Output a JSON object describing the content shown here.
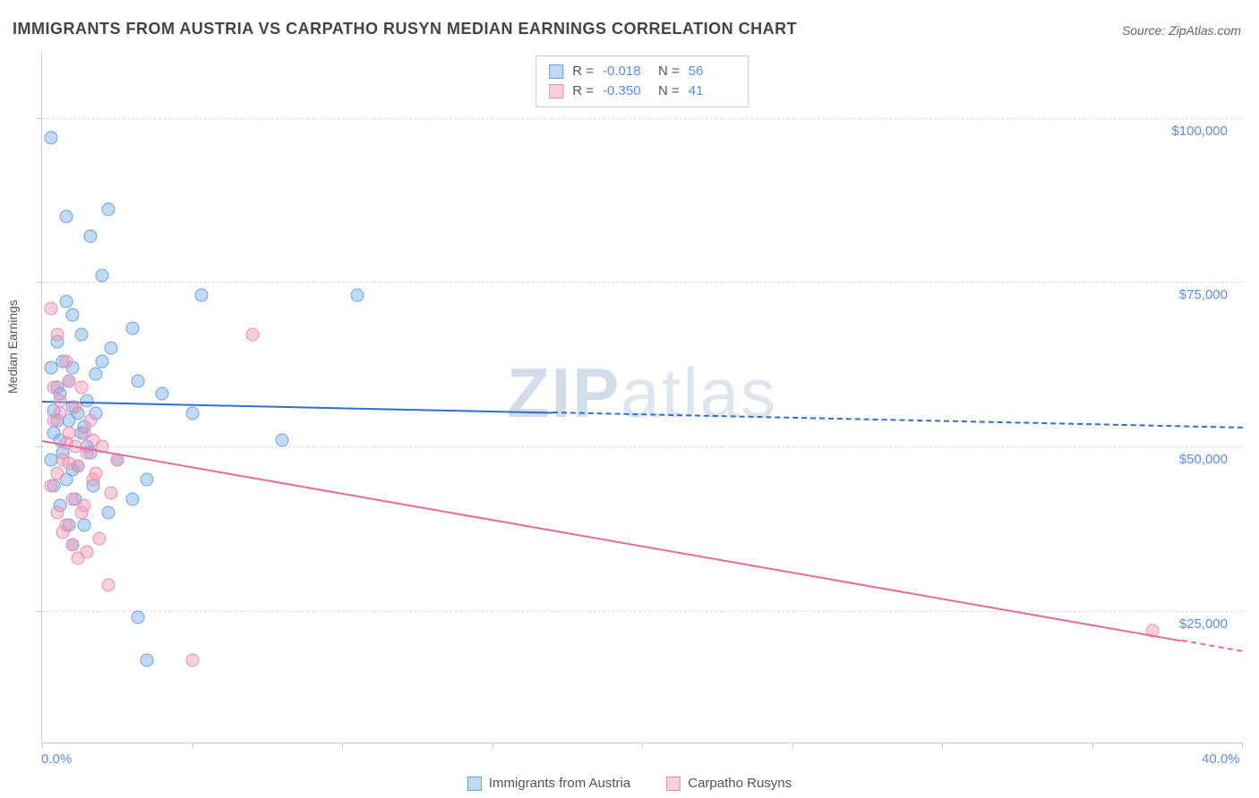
{
  "title": "IMMIGRANTS FROM AUSTRIA VS CARPATHO RUSYN MEDIAN EARNINGS CORRELATION CHART",
  "source_label": "Source: ZipAtlas.com",
  "y_axis_label": "Median Earnings",
  "watermark": {
    "bold": "ZIP",
    "rest": "atlas"
  },
  "chart": {
    "type": "scatter",
    "xlim": [
      0,
      40
    ],
    "ylim": [
      5000,
      110000
    ],
    "x_ticks": [
      0,
      5,
      10,
      15,
      20,
      25,
      30,
      35,
      40
    ],
    "x_tick_labels": {
      "first": "0.0%",
      "last": "40.0%"
    },
    "y_gridlines": [
      25000,
      50000,
      75000,
      100000
    ],
    "y_tick_labels": [
      "$25,000",
      "$50,000",
      "$75,000",
      "$100,000"
    ],
    "background_color": "#ffffff",
    "grid_color": "#dddddd",
    "axis_color": "#cccccc",
    "tick_label_color": "#5b8def",
    "label_fontsize": 14,
    "tick_fontsize": 15,
    "title_fontsize": 18,
    "marker_size": 15,
    "series": [
      {
        "name": "Immigrants from Austria",
        "legend_label": "Immigrants from Austria",
        "fill_color": "rgba(120,170,230,0.45)",
        "stroke_color": "#6aa3e0",
        "trend_color": "#2f6fd0",
        "R": "-0.018",
        "N": "56",
        "trend": {
          "x1": 0,
          "y1": 57000,
          "x2": 40,
          "y2": 53000,
          "solid_until_x": 17
        },
        "points": [
          [
            0.3,
            97000
          ],
          [
            0.5,
            66000
          ],
          [
            0.8,
            85000
          ],
          [
            1.0,
            70000
          ],
          [
            1.2,
            55000
          ],
          [
            1.0,
            62000
          ],
          [
            0.6,
            58000
          ],
          [
            0.4,
            52000
          ],
          [
            0.3,
            48000
          ],
          [
            0.8,
            45000
          ],
          [
            1.5,
            50000
          ],
          [
            1.2,
            47000
          ],
          [
            0.9,
            60000
          ],
          [
            0.7,
            63000
          ],
          [
            0.5,
            54000
          ],
          [
            1.0,
            56000
          ],
          [
            1.3,
            52000
          ],
          [
            1.6,
            49000
          ],
          [
            0.4,
            44000
          ],
          [
            0.6,
            41000
          ],
          [
            2.0,
            76000
          ],
          [
            2.3,
            65000
          ],
          [
            2.5,
            48000
          ],
          [
            3.0,
            42000
          ],
          [
            3.2,
            60000
          ],
          [
            2.2,
            86000
          ],
          [
            2.0,
            63000
          ],
          [
            1.8,
            55000
          ],
          [
            1.4,
            38000
          ],
          [
            1.0,
            35000
          ],
          [
            5.3,
            73000
          ],
          [
            5.0,
            55000
          ],
          [
            4.0,
            58000
          ],
          [
            3.5,
            45000
          ],
          [
            10.5,
            73000
          ],
          [
            8.0,
            51000
          ],
          [
            3.0,
            68000
          ],
          [
            0.8,
            72000
          ],
          [
            1.3,
            67000
          ],
          [
            0.5,
            59000
          ],
          [
            1.7,
            44000
          ],
          [
            2.2,
            40000
          ],
          [
            0.9,
            38000
          ],
          [
            1.1,
            42000
          ],
          [
            0.4,
            55500
          ],
          [
            0.6,
            51000
          ],
          [
            1.5,
            57000
          ],
          [
            1.8,
            61000
          ],
          [
            0.3,
            62000
          ],
          [
            0.7,
            49000
          ],
          [
            1.0,
            46500
          ],
          [
            1.4,
            53000
          ],
          [
            3.2,
            24000
          ],
          [
            3.5,
            17500
          ],
          [
            1.6,
            82000
          ],
          [
            0.9,
            54000
          ]
        ]
      },
      {
        "name": "Carpatho Rusyns",
        "legend_label": "Carpatho Rusyns",
        "fill_color": "rgba(240,150,180,0.45)",
        "stroke_color": "#e98fb0",
        "trend_color": "#e86a9a",
        "R": "-0.350",
        "N": "41",
        "trend": {
          "x1": 0,
          "y1": 51000,
          "x2": 40,
          "y2": 19000,
          "solid_until_x": 38
        },
        "points": [
          [
            0.3,
            71000
          ],
          [
            0.5,
            67000
          ],
          [
            0.8,
            63000
          ],
          [
            0.4,
            59000
          ],
          [
            0.6,
            55000
          ],
          [
            0.9,
            52000
          ],
          [
            1.1,
            50000
          ],
          [
            0.7,
            48000
          ],
          [
            0.5,
            46000
          ],
          [
            0.3,
            44000
          ],
          [
            1.0,
            42000
          ],
          [
            1.3,
            40000
          ],
          [
            0.8,
            38000
          ],
          [
            1.5,
            49000
          ],
          [
            1.2,
            47000
          ],
          [
            1.7,
            45000
          ],
          [
            0.4,
            54000
          ],
          [
            0.6,
            57000
          ],
          [
            0.9,
            60000
          ],
          [
            1.4,
            52000
          ],
          [
            2.0,
            50000
          ],
          [
            2.3,
            43000
          ],
          [
            1.8,
            46000
          ],
          [
            2.5,
            48000
          ],
          [
            1.6,
            54000
          ],
          [
            0.5,
            40000
          ],
          [
            0.7,
            37000
          ],
          [
            1.0,
            35000
          ],
          [
            1.2,
            33000
          ],
          [
            1.5,
            34000
          ],
          [
            1.9,
            36000
          ],
          [
            7.0,
            67000
          ],
          [
            2.2,
            29000
          ],
          [
            1.4,
            41000
          ],
          [
            0.8,
            50500
          ],
          [
            0.9,
            47500
          ],
          [
            1.1,
            56000
          ],
          [
            5.0,
            17500
          ],
          [
            1.3,
            59000
          ],
          [
            1.7,
            51000
          ],
          [
            37.0,
            22000
          ]
        ]
      }
    ]
  },
  "stats_box": {
    "r_label": "R =",
    "n_label": "N ="
  }
}
